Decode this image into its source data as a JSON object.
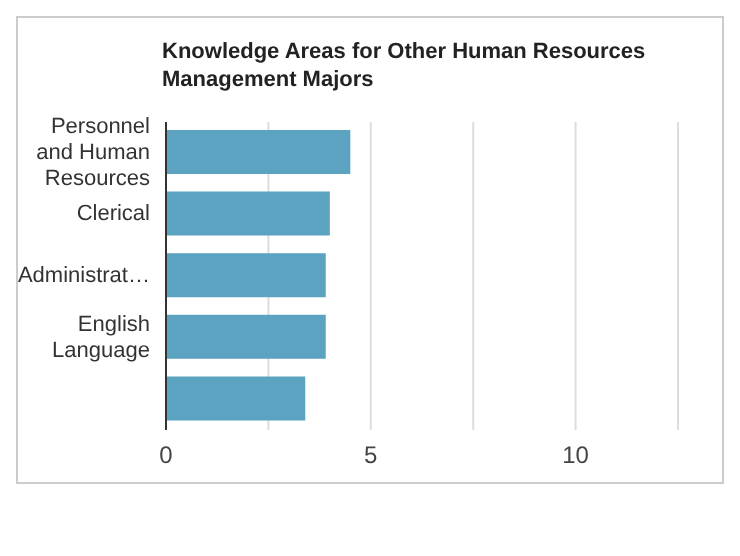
{
  "chart_data": {
    "type": "bar",
    "orientation": "horizontal",
    "title": "Knowledge Areas for Other Human Resources Management Majors",
    "categories": [
      "Personnel and Human Resources",
      "Clerical",
      "Administrat…",
      "English Language",
      null
    ],
    "values": [
      4.5,
      4.0,
      3.9,
      3.9,
      3.4
    ],
    "color": "#5ba3c1",
    "xlim": [
      0,
      12.5
    ],
    "xticks": [
      0,
      {
        "value": 2.5,
        "label": null
      },
      5,
      {
        "value": 7.5,
        "label": null
      },
      10
    ],
    "grid": "x"
  }
}
